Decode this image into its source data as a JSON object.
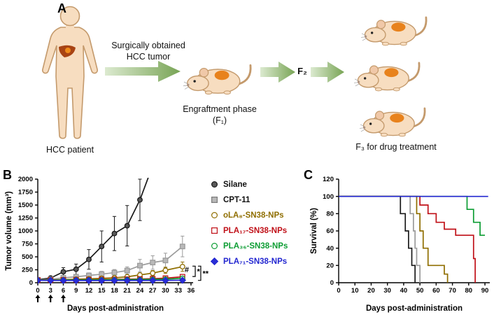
{
  "figure": {
    "panel_a_label": "A",
    "panel_b_label": "B",
    "panel_c_label": "C"
  },
  "panelA": {
    "patient_label": "HCC patient",
    "surgery_line1": "Surgically obtained",
    "surgery_line2": "HCC tumor",
    "engraftment_line1": "Engraftment phase",
    "engraftment_line2": "(F₁)",
    "f2_label": "F₂",
    "f3_label": "F₃ for drug treatment"
  },
  "colors": {
    "silane": "#1a1a1a",
    "cpt11": "#9b9b9b",
    "ola8": "#8f6e00",
    "pla17": "#c01018",
    "pla36": "#0c9d33",
    "pla71": "#2226d0",
    "mouse_body": "#f7ddc0",
    "outline_tan": "#c49a6c",
    "tumor_orange": "#e8821c",
    "arrow_green_light": "#dcead0",
    "arrow_green_dark": "#78a455"
  },
  "legend": {
    "items": [
      {
        "label": "Silane",
        "label_color": "#111111",
        "marker": "circle",
        "stroke": "#1a1a1a",
        "fill": "#595959"
      },
      {
        "label": "CPT-11",
        "label_color": "#111111",
        "marker": "square",
        "stroke": "#7c7c7c",
        "fill": "#b9b9b9"
      },
      {
        "label": "oLA₈-SN38-NPs",
        "label_color": "#8f6e00",
        "marker": "circle",
        "stroke": "#8f6e00",
        "fill": "#ffffff"
      },
      {
        "label": "PLA₁₇-SN38-NPs",
        "label_color": "#c01018",
        "marker": "square",
        "stroke": "#c01018",
        "fill": "#ffffff"
      },
      {
        "label": "PLA₃₆-SN38-NPs",
        "label_color": "#0c9d33",
        "marker": "circle",
        "stroke": "#0c9d33",
        "fill": "#ffffff"
      },
      {
        "label": "PLA₇₁-SN38-NPs",
        "label_color": "#2226d0",
        "marker": "diamond",
        "stroke": "#2226d0",
        "fill": "#2a2ed6"
      }
    ]
  },
  "chart_data": [
    {
      "id": "tumor_volume",
      "type": "line",
      "title": "",
      "xlabel": "Days post-administration",
      "ylabel": "Tumor volume (mm³)",
      "xlim": [
        0,
        36.5
      ],
      "ylim": [
        0,
        2000
      ],
      "xticks": [
        0,
        3,
        6,
        9,
        12,
        15,
        18,
        21,
        24,
        27,
        30,
        33,
        36
      ],
      "yticks": [
        0,
        250,
        500,
        750,
        1000,
        1250,
        1500,
        1750,
        2000
      ],
      "grid": false,
      "legend_position": "external-right",
      "injection_days": [
        0,
        3,
        6
      ],
      "series": [
        {
          "name": "Silane",
          "color": "#1a1a1a",
          "marker": "circle",
          "marker_fill": "#595959",
          "x": [
            0,
            3,
            6,
            9,
            12,
            15,
            18,
            21,
            24,
            26.5
          ],
          "y": [
            60,
            90,
            210,
            260,
            450,
            700,
            950,
            1100,
            1600,
            2150
          ],
          "err": [
            20,
            30,
            80,
            100,
            190,
            300,
            330,
            390,
            400,
            0
          ]
        },
        {
          "name": "CPT-11",
          "color": "#9b9b9b",
          "marker": "square",
          "marker_fill": "#b9b9b9",
          "x": [
            0,
            3,
            6,
            9,
            12,
            15,
            18,
            21,
            24,
            27,
            30,
            34
          ],
          "y": [
            55,
            65,
            95,
            115,
            140,
            165,
            195,
            235,
            330,
            390,
            430,
            700
          ],
          "err": [
            15,
            20,
            30,
            40,
            50,
            55,
            60,
            70,
            120,
            130,
            140,
            200
          ]
        },
        {
          "name": "oLA₈-SN38-NPs",
          "color": "#8f6e00",
          "marker": "circle",
          "marker_fill": "#ffffff",
          "x": [
            0,
            3,
            6,
            9,
            12,
            15,
            18,
            21,
            24,
            27,
            30,
            34
          ],
          "y": [
            50,
            55,
            60,
            68,
            75,
            85,
            95,
            115,
            150,
            185,
            240,
            310
          ],
          "err": [
            10,
            10,
            12,
            15,
            18,
            20,
            22,
            30,
            40,
            50,
            60,
            90
          ]
        },
        {
          "name": "PLA₁₇-SN38-NPs",
          "color": "#c01018",
          "marker": "square",
          "marker_fill": "#ffffff",
          "x": [
            0,
            3,
            6,
            9,
            12,
            15,
            18,
            21,
            24,
            27,
            30,
            34
          ],
          "y": [
            50,
            52,
            55,
            57,
            60,
            62,
            64,
            68,
            72,
            78,
            88,
            115
          ],
          "err": [
            8,
            8,
            8,
            10,
            10,
            10,
            12,
            12,
            14,
            16,
            20,
            35
          ]
        },
        {
          "name": "PLA₃₆-SN38-NPs",
          "color": "#0c9d33",
          "marker": "circle",
          "marker_fill": "#ffffff",
          "x": [
            0,
            3,
            6,
            9,
            12,
            15,
            18,
            21,
            24,
            27,
            30,
            34
          ],
          "y": [
            48,
            50,
            52,
            53,
            55,
            56,
            58,
            60,
            62,
            64,
            68,
            85
          ],
          "err": [
            8,
            8,
            8,
            8,
            9,
            9,
            10,
            10,
            10,
            12,
            14,
            20
          ]
        },
        {
          "name": "PLA₇₁-SN38-NPs",
          "color": "#2226d0",
          "marker": "diamond",
          "marker_fill": "#2a2ed6",
          "x": [
            0,
            3,
            6,
            9,
            12,
            15,
            18,
            21,
            24,
            27,
            30,
            34
          ],
          "y": [
            45,
            44,
            43,
            43,
            42,
            42,
            43,
            43,
            44,
            44,
            45,
            48
          ],
          "err": [
            6,
            6,
            6,
            6,
            6,
            6,
            6,
            6,
            6,
            6,
            8,
            10
          ]
        }
      ],
      "annotations": [
        {
          "type": "text",
          "text": "#",
          "x": 35.0,
          "y": 200
        },
        {
          "type": "bracket",
          "label": "*",
          "x": 37.0,
          "y1": 320,
          "y2": 120
        },
        {
          "type": "bracket",
          "label": "**",
          "x": 38.3,
          "y1": 320,
          "y2": 45
        }
      ]
    },
    {
      "id": "survival",
      "type": "step",
      "title": "",
      "xlabel": "Days post-administration",
      "ylabel": "Survival (%)",
      "xlim": [
        0,
        93
      ],
      "ylim": [
        0,
        120
      ],
      "xticks": [
        0,
        10,
        20,
        30,
        40,
        50,
        60,
        70,
        80,
        90
      ],
      "yticks": [
        0,
        20,
        40,
        60,
        80,
        100,
        120
      ],
      "grid": false,
      "series": [
        {
          "name": "Silane",
          "color": "#1a1a1a",
          "x": [
            0,
            38,
            38,
            41,
            41,
            43,
            43,
            45,
            45,
            47,
            47
          ],
          "y": [
            100,
            100,
            80,
            80,
            60,
            60,
            40,
            40,
            20,
            20,
            0
          ]
        },
        {
          "name": "CPT-11",
          "color": "#9b9b9b",
          "x": [
            0,
            44,
            44,
            46,
            46,
            47,
            47,
            48,
            48,
            50,
            50
          ],
          "y": [
            100,
            100,
            80,
            80,
            60,
            60,
            40,
            40,
            20,
            20,
            0
          ]
        },
        {
          "name": "oLA₈-SN38-NPs",
          "color": "#8f6e00",
          "x": [
            0,
            48,
            48,
            50,
            50,
            52,
            52,
            55,
            55,
            65,
            65,
            67,
            67
          ],
          "y": [
            100,
            100,
            80,
            80,
            60,
            60,
            40,
            40,
            20,
            20,
            10,
            10,
            0
          ]
        },
        {
          "name": "PLA₁₇-SN38-NPs",
          "color": "#c01018",
          "x": [
            0,
            50,
            50,
            55,
            55,
            60,
            60,
            65,
            65,
            72,
            72,
            83,
            83,
            84,
            84
          ],
          "y": [
            100,
            100,
            90,
            90,
            80,
            80,
            70,
            70,
            62,
            62,
            55,
            55,
            28,
            28,
            0
          ]
        },
        {
          "name": "PLA₃₆-SN38-NPs",
          "color": "#0c9d33",
          "x": [
            0,
            79,
            79,
            83,
            83,
            87,
            87,
            90
          ],
          "y": [
            100,
            100,
            85,
            85,
            70,
            70,
            55,
            55
          ]
        },
        {
          "name": "PLA₇₁-SN38-NPs",
          "color": "#2226d0",
          "x": [
            0,
            92
          ],
          "y": [
            100,
            100
          ]
        }
      ]
    }
  ]
}
